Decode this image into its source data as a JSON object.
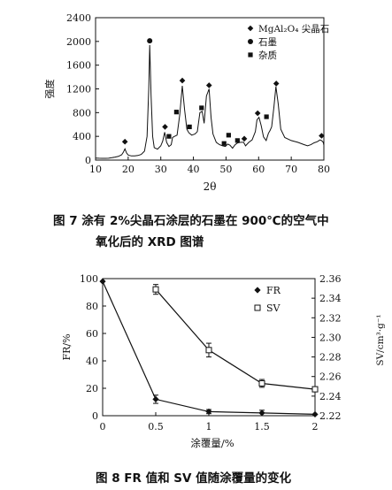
{
  "figure7": {
    "caption_line1": "图 7   涂有 2%尖晶石涂层的石墨在 900℃的空气中",
    "caption_line2": "氧化后的 XRD 图谱",
    "chart_data": {
      "type": "line",
      "xlabel": "2θ",
      "ylabel": "强度",
      "xlim": [
        10,
        80
      ],
      "ylim": [
        0,
        2400
      ],
      "xticks": [
        "10",
        "20",
        "30",
        "40",
        "50",
        "60",
        "70",
        "80"
      ],
      "yticks": [
        "0",
        "400",
        "800",
        "1200",
        "1600",
        "2000",
        "2400"
      ],
      "legend_position": "top-right",
      "legend": [
        {
          "marker": "diamond",
          "label": "MgAl₂O₄ 尖晶石"
        },
        {
          "marker": "circle",
          "label": "石墨"
        },
        {
          "marker": "square",
          "label": "杂质"
        }
      ],
      "pattern": {
        "x": [
          10,
          11,
          12,
          13,
          14,
          15,
          16,
          17,
          18,
          18.5,
          19,
          19.5,
          20,
          21,
          22,
          23,
          24,
          25,
          25.8,
          26.3,
          26.6,
          27,
          27.5,
          28,
          29,
          30,
          30.6,
          31.2,
          31.8,
          32.5,
          33.2,
          33.6,
          34.2,
          35,
          35.8,
          36.6,
          37.3,
          38,
          38.6,
          39.5,
          40.5,
          41.2,
          42,
          42.7,
          43.3,
          44,
          44.8,
          45.4,
          46,
          47,
          48,
          49,
          49.8,
          50.5,
          51.2,
          52,
          52.8,
          53.6,
          54.5,
          55.4,
          56,
          57,
          58,
          59,
          59.5,
          60.1,
          60.8,
          61.5,
          62.3,
          63,
          63.5,
          64,
          64.7,
          65.3,
          66,
          66.8,
          68,
          70,
          72,
          74,
          75,
          76,
          77,
          78,
          78.8,
          79.3,
          79.8,
          80
        ],
        "y": [
          35,
          32,
          30,
          30,
          32,
          40,
          50,
          62,
          90,
          130,
          190,
          120,
          85,
          70,
          72,
          78,
          95,
          150,
          400,
          1200,
          1940,
          1100,
          400,
          210,
          185,
          240,
          320,
          470,
          300,
          230,
          260,
          380,
          400,
          420,
          760,
          1250,
          850,
          520,
          460,
          420,
          440,
          480,
          800,
          820,
          620,
          1080,
          1200,
          720,
          440,
          300,
          260,
          240,
          230,
          270,
          250,
          200,
          260,
          290,
          300,
          300,
          240,
          300,
          340,
          480,
          680,
          720,
          580,
          390,
          330,
          450,
          500,
          560,
          900,
          1240,
          950,
          520,
          380,
          330,
          300,
          260,
          240,
          260,
          290,
          310,
          340,
          330,
          300,
          250
        ]
      },
      "markers": [
        {
          "type": "diamond",
          "x": 19,
          "y": 310
        },
        {
          "type": "circle",
          "x": 26.6,
          "y": 2010
        },
        {
          "type": "diamond",
          "x": 31.3,
          "y": 560
        },
        {
          "type": "square",
          "x": 32.5,
          "y": 400
        },
        {
          "type": "square",
          "x": 34.8,
          "y": 810
        },
        {
          "type": "diamond",
          "x": 36.6,
          "y": 1340
        },
        {
          "type": "square",
          "x": 38.8,
          "y": 560
        },
        {
          "type": "square",
          "x": 42.5,
          "y": 880
        },
        {
          "type": "diamond",
          "x": 44.8,
          "y": 1260
        },
        {
          "type": "square",
          "x": 49.4,
          "y": 280
        },
        {
          "type": "square",
          "x": 50.8,
          "y": 420
        },
        {
          "type": "square",
          "x": 53.5,
          "y": 330
        },
        {
          "type": "diamond",
          "x": 55.6,
          "y": 360
        },
        {
          "type": "diamond",
          "x": 59.7,
          "y": 790
        },
        {
          "type": "square",
          "x": 62.4,
          "y": 730
        },
        {
          "type": "diamond",
          "x": 65.4,
          "y": 1290
        },
        {
          "type": "diamond",
          "x": 79.3,
          "y": 410
        }
      ]
    }
  },
  "figure8": {
    "caption": "图 8   FR 值和 SV 值随涂覆量的变化",
    "chart_data": {
      "type": "line",
      "xlabel": "涂覆量/%",
      "ylabel_left": "FR/%",
      "ylabel_right": "SV/cm³·g⁻¹",
      "xlim": [
        0,
        2
      ],
      "ylim_left": [
        0,
        100
      ],
      "ylim_right": [
        2.22,
        2.36
      ],
      "xticks": [
        "0",
        "0.5",
        "1",
        "1.5",
        "2"
      ],
      "yticks_left": [
        "0",
        "20",
        "40",
        "60",
        "80",
        "100"
      ],
      "yticks_right": [
        "2.22",
        "2.24",
        "2.26",
        "2.28",
        "2.30",
        "2.32",
        "2.34",
        "2.36"
      ],
      "legend_position": "top-right",
      "series": [
        {
          "name": "FR",
          "marker": "filled-diamond",
          "axis": "left",
          "x": [
            0,
            0.5,
            1,
            1.5,
            2
          ],
          "y": [
            98,
            12,
            3,
            2,
            1
          ],
          "err": [
            0,
            3,
            1.5,
            2,
            0
          ]
        },
        {
          "name": "SV",
          "marker": "open-square",
          "axis": "right",
          "x": [
            0.5,
            1,
            1.5,
            2
          ],
          "y": [
            2.349,
            2.287,
            2.253,
            2.247
          ],
          "err": [
            0.005,
            0.007,
            0.004,
            0.002
          ]
        }
      ]
    }
  }
}
